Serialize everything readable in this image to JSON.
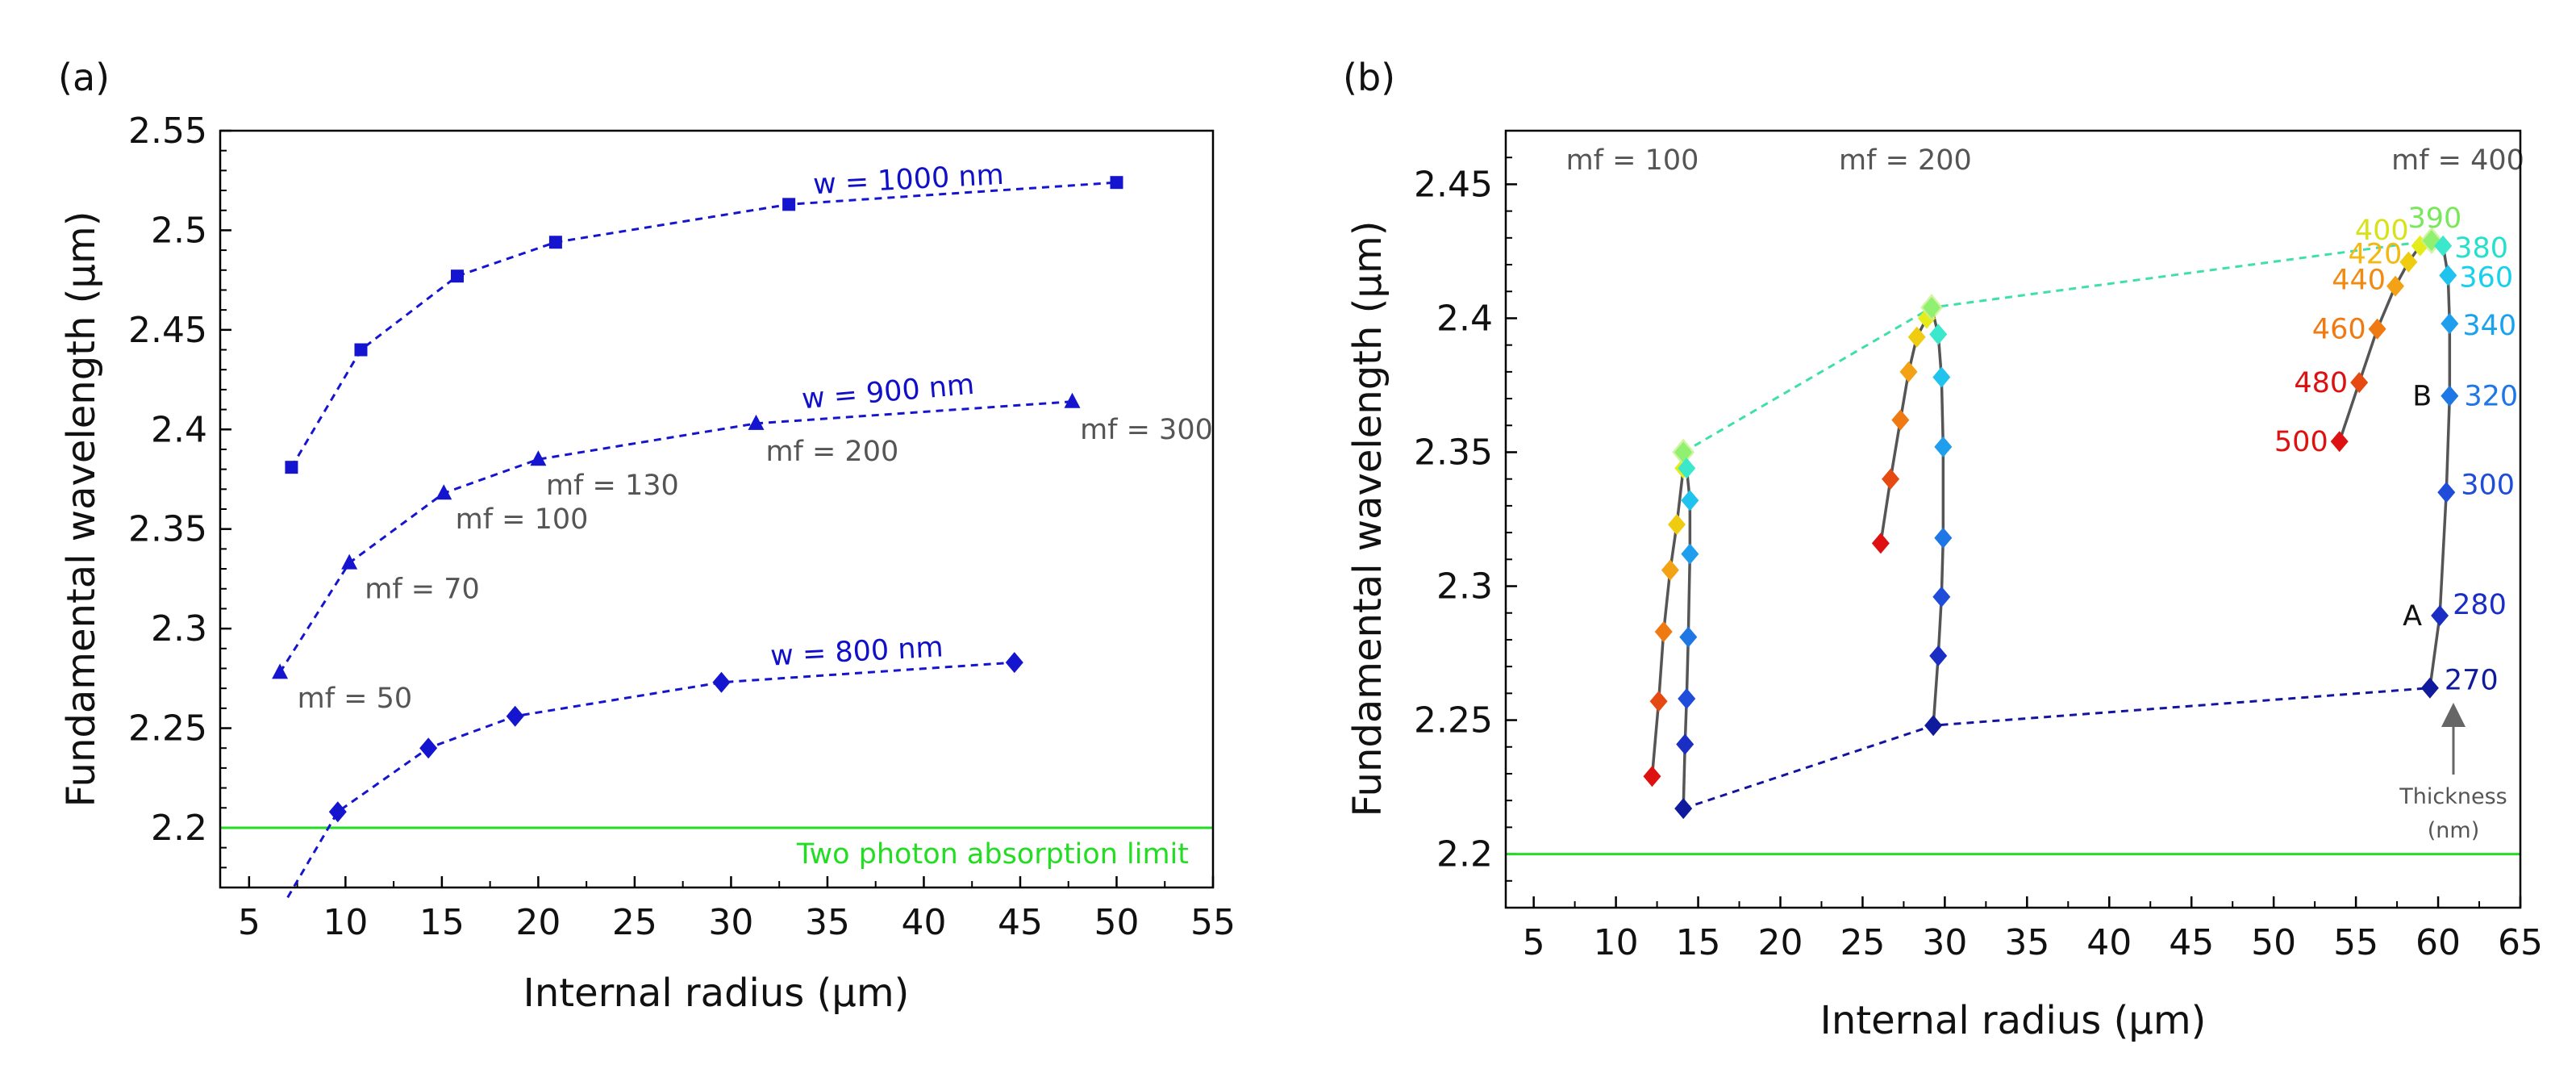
{
  "chart_data": [
    {
      "type": "line",
      "panel_label": "(a)",
      "xlabel": "Internal radius (µm)",
      "ylabel": "Fundamental wavelength (µm)",
      "xlim": [
        3.5,
        55
      ],
      "ylim": [
        2.17,
        2.55
      ],
      "xticks": [
        5,
        10,
        15,
        20,
        25,
        30,
        35,
        40,
        45,
        50,
        55
      ],
      "yticks": [
        2.2,
        2.25,
        2.3,
        2.35,
        2.4,
        2.45,
        2.5,
        2.55
      ],
      "ytick_labels": [
        "2.2",
        "2.25",
        "2.3",
        "2.35",
        "2.4",
        "2.45",
        "2.5",
        "2.55"
      ],
      "series": [
        {
          "name": "w = 1000 nm",
          "marker": "square",
          "color": "#1515d0",
          "x": [
            7.2,
            10.8,
            15.8,
            20.9,
            33,
            50
          ],
          "y": [
            2.381,
            2.44,
            2.477,
            2.494,
            2.513,
            2.524
          ]
        },
        {
          "name": "w = 900 nm",
          "marker": "triangle",
          "color": "#1515d0",
          "x": [
            6.6,
            10.2,
            15.1,
            20,
            31.3,
            47.7
          ],
          "y": [
            2.278,
            2.333,
            2.368,
            2.385,
            2.403,
            2.414
          ]
        },
        {
          "name": "w = 800 nm",
          "marker": "diamond",
          "color": "#1515d0",
          "x": [
            9.6,
            14.3,
            18.8,
            29.5,
            44.7
          ],
          "y": [
            2.208,
            2.24,
            2.256,
            2.273,
            2.283
          ],
          "extension_to": [
            7,
            2.165
          ]
        }
      ],
      "reference_line": {
        "y": 2.2,
        "label": "Two photon absorption limit",
        "color": "#22dd22"
      },
      "annotations": [
        {
          "text": "mf = 50",
          "x": 7.5,
          "y": 2.27
        },
        {
          "text": "mf = 70",
          "x": 11,
          "y": 2.325
        },
        {
          "text": "mf = 100",
          "x": 15.7,
          "y": 2.36
        },
        {
          "text": "mf = 130",
          "x": 20.4,
          "y": 2.377
        },
        {
          "text": "mf = 200",
          "x": 31.8,
          "y": 2.394
        },
        {
          "text": "mf = 300",
          "x": 48.1,
          "y": 2.405
        }
      ]
    },
    {
      "type": "line",
      "panel_label": "(b)",
      "xlabel": "Internal radius (µm)",
      "ylabel": "Fundamental wavelength (µm)",
      "xlim": [
        3.3,
        65
      ],
      "ylim": [
        2.18,
        2.47
      ],
      "xticks": [
        5,
        10,
        15,
        20,
        25,
        30,
        35,
        40,
        45,
        50,
        55,
        60,
        65
      ],
      "yticks": [
        2.2,
        2.25,
        2.3,
        2.35,
        2.4,
        2.45
      ],
      "ytick_labels": [
        "2.2",
        "2.25",
        "2.3",
        "2.35",
        "2.4",
        "2.45"
      ],
      "group_labels": [
        {
          "text": "mf = 100",
          "x": 11
        },
        {
          "text": "mf = 200",
          "x": 27.6
        },
        {
          "text": "mf = 400",
          "x": 61.2
        }
      ],
      "thickness_nm": [
        500,
        480,
        460,
        440,
        420,
        400,
        390,
        380,
        360,
        340,
        320,
        300,
        280,
        270
      ],
      "thickness_colors": [
        "#dd1111",
        "#e54a12",
        "#f07a12",
        "#f2a214",
        "#f0cc10",
        "#e6ec1a",
        "#90f070",
        "#3ce8cc",
        "#20c2ee",
        "#1f9eee",
        "#1f77e6",
        "#1f4cd8",
        "#1a2ec4",
        "#101a9c"
      ],
      "series": [
        {
          "name": "mf = 100",
          "x": [
            12.2,
            12.6,
            12.9,
            13.3,
            13.7,
            14.1,
            14.1,
            14.3,
            14.5,
            14.5,
            14.4,
            14.3,
            14.2,
            14.1
          ],
          "y": [
            2.229,
            2.257,
            2.283,
            2.306,
            2.323,
            2.344,
            2.35,
            2.344,
            2.332,
            2.312,
            2.281,
            2.258,
            2.241,
            2.217
          ]
        },
        {
          "name": "mf = 200",
          "x": [
            26.1,
            26.7,
            27.3,
            27.8,
            28.3,
            28.9,
            29.2,
            29.6,
            29.8,
            29.9,
            29.9,
            29.8,
            29.6,
            29.3
          ],
          "y": [
            2.316,
            2.34,
            2.362,
            2.38,
            2.393,
            2.4,
            2.404,
            2.394,
            2.378,
            2.352,
            2.318,
            2.296,
            2.274,
            2.248
          ]
        },
        {
          "name": "mf = 400",
          "x": [
            54,
            55.2,
            56.3,
            57.4,
            58.2,
            58.9,
            59.6,
            60.3,
            60.6,
            60.7,
            60.7,
            60.5,
            60.1,
            59.5
          ],
          "y": [
            2.354,
            2.376,
            2.396,
            2.412,
            2.421,
            2.427,
            2.429,
            2.427,
            2.416,
            2.398,
            2.371,
            2.335,
            2.289,
            2.262
          ]
        }
      ],
      "connectors": [
        {
          "from_thickness": 390,
          "color": "#3ee0a8",
          "x": [
            14.1,
            29.2,
            59.6
          ],
          "y": [
            2.35,
            2.404,
            2.429
          ]
        },
        {
          "from_thickness": 270,
          "color": "#1414a0",
          "x": [
            14.1,
            29.3,
            59.5
          ],
          "y": [
            2.217,
            2.248,
            2.262
          ]
        }
      ],
      "point_labels": [
        {
          "text": "500",
          "color": "#dd1111"
        },
        {
          "text": "480",
          "color": "#dd1111"
        },
        {
          "text": "460",
          "color": "#f07a12"
        },
        {
          "text": "440",
          "color": "#f08a12"
        },
        {
          "text": "420",
          "color": "#f2b814"
        },
        {
          "text": "400",
          "color": "#d8e21a"
        },
        {
          "text": "390",
          "color": "#78e85a"
        },
        {
          "text": "380",
          "color": "#26e0cc"
        },
        {
          "text": "360",
          "color": "#18d0ee"
        },
        {
          "text": "340",
          "color": "#1aa2ee"
        },
        {
          "text": "320",
          "color": "#1f77e6"
        },
        {
          "text": "300",
          "color": "#1f4cd8"
        },
        {
          "text": "280",
          "color": "#1a2ec4"
        },
        {
          "text": "270",
          "color": "#101a9c"
        }
      ],
      "markers": [
        {
          "text": "A",
          "thickness": 280
        },
        {
          "text": "B",
          "thickness": 320
        }
      ],
      "thickness_note": {
        "line1": "Thickness",
        "line2": "(nm)"
      },
      "reference_line": {
        "y": 2.2,
        "color": "#22dd22"
      }
    }
  ]
}
